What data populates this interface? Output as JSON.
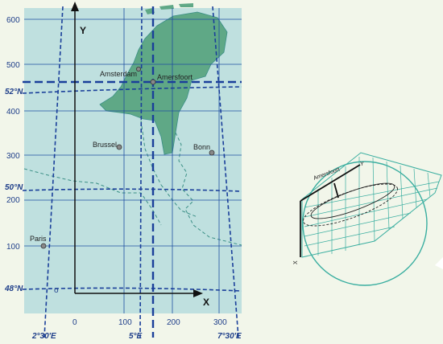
{
  "colors": {
    "background": "#f2f6ea",
    "sea": "#bfe0df",
    "land": "#5fa886",
    "grid": "#1f4fa0",
    "graticule": "#1a3f9a",
    "border": "#3b8f86",
    "text": "#1f3f8a"
  },
  "map": {
    "y_axis_label": "Y",
    "x_axis_label": "X",
    "y_ticks": [
      "600",
      "500",
      "400",
      "300",
      "200",
      "100"
    ],
    "x_ticks": [
      "0",
      "100",
      "200",
      "300"
    ],
    "latitudes": [
      "52°N",
      "50°N",
      "48°N"
    ],
    "longitudes": [
      "2°30'E",
      "5°E",
      "7°30'E"
    ],
    "origin_marker": "o",
    "cities": [
      "Amsterdam",
      "Amersfoort",
      "Brussel",
      "Bonn",
      "Paris"
    ]
  },
  "projection": {
    "label": "Amersfoort",
    "axis_y": "Y",
    "axis_x": "X"
  }
}
